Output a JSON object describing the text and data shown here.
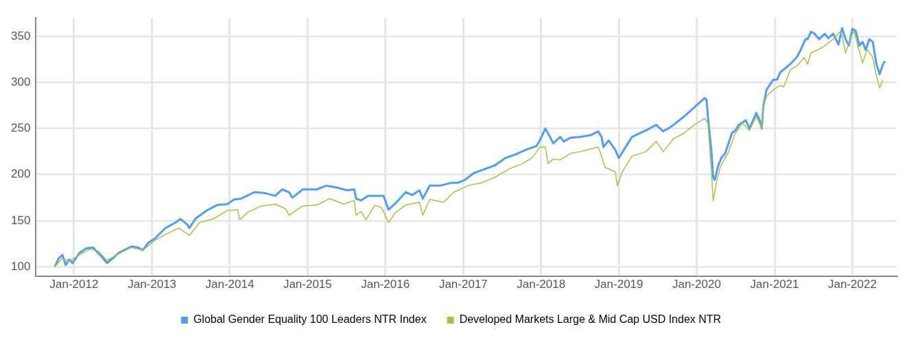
{
  "chart_data": {
    "type": "line",
    "legend": "bottom",
    "grid": true,
    "marker": "none",
    "line_style": "solid",
    "xlim": [
      "2011-07-06",
      "2022-07-28"
    ],
    "xticks": [
      {
        "value": "2012-01",
        "label": "Jan-2012"
      },
      {
        "value": "2013-01",
        "label": "Jan-2013"
      },
      {
        "value": "2014-01",
        "label": "Jan-2014"
      },
      {
        "value": "2015-01",
        "label": "Jan-2015"
      },
      {
        "value": "2016-01",
        "label": "Jan-2016"
      },
      {
        "value": "2017-01",
        "label": "Jan-2017"
      },
      {
        "value": "2018-01",
        "label": "Jan-2018"
      },
      {
        "value": "2019-01",
        "label": "Jan-2019"
      },
      {
        "value": "2020-01",
        "label": "Jan-2020"
      },
      {
        "value": "2021-01",
        "label": "Jan-2021"
      },
      {
        "value": "2022-01",
        "label": "Jan-2022"
      }
    ],
    "ylim": [
      90,
      370
    ],
    "yticks": [
      100,
      150,
      200,
      250,
      300,
      350
    ],
    "series": [
      {
        "name": "Global Gender Equality 100 Leaders NTR Index",
        "color": "#4d9dfa",
        "x": [
          "2011-10-02",
          "2011-10-21",
          "2011-11-07",
          "2011-11-23",
          "2011-12-09",
          "2011-12-25",
          "2012-01-26",
          "2012-02-28",
          "2012-03-30",
          "2012-04-22",
          "2012-05-18",
          "2012-06-03",
          "2012-07-05",
          "2012-07-28",
          "2012-08-23",
          "2012-09-25",
          "2012-10-27",
          "2012-11-19",
          "2012-12-14",
          "2013-01-16",
          "2013-03-04",
          "2013-04-21",
          "2013-05-14",
          "2013-06-15",
          "2013-06-25",
          "2013-07-27",
          "2013-09-14",
          "2013-11-02",
          "2013-12-20",
          "2014-01-21",
          "2014-02-23",
          "2014-04-27",
          "2014-06-14",
          "2014-08-02",
          "2014-09-04",
          "2014-10-06",
          "2014-10-22",
          "2014-12-09",
          "2015-02-13",
          "2015-03-30",
          "2015-05-18",
          "2015-07-06",
          "2015-08-08",
          "2015-08-17",
          "2015-09-09",
          "2015-10-11",
          "2015-11-13",
          "2015-12-24",
          "2016-01-16",
          "2016-02-18",
          "2016-04-06",
          "2016-05-08",
          "2016-06-09",
          "2016-06-25",
          "2016-07-27",
          "2016-09-14",
          "2016-11-02",
          "2016-12-04",
          "2017-01-06",
          "2017-02-22",
          "2017-04-11",
          "2017-05-29",
          "2017-07-17",
          "2017-09-04",
          "2017-10-22",
          "2017-12-10",
          "2017-12-26",
          "2018-01-21",
          "2018-02-12",
          "2018-02-27",
          "2018-04-01",
          "2018-04-17",
          "2018-05-19",
          "2018-07-06",
          "2018-08-24",
          "2018-09-26",
          "2018-10-12",
          "2018-10-21",
          "2018-11-14",
          "2018-12-15",
          "2019-01-01",
          "2019-02-02",
          "2019-03-04",
          "2019-05-08",
          "2019-06-26",
          "2019-07-28",
          "2019-08-29",
          "2019-10-01",
          "2019-11-03",
          "2019-12-21",
          "2020-02-08",
          "2020-02-17",
          "2020-02-23",
          "2020-03-10",
          "2020-03-19",
          "2020-03-26",
          "2020-04-12",
          "2020-04-28",
          "2020-05-14",
          "2020-05-30",
          "2020-06-15",
          "2020-07-01",
          "2020-07-17",
          "2020-08-19",
          "2020-09-05",
          "2020-10-07",
          "2020-10-23",
          "2020-11-02",
          "2020-11-09",
          "2020-11-24",
          "2020-12-26",
          "2021-01-12",
          "2021-01-28",
          "2021-02-13",
          "2021-03-16",
          "2021-04-17",
          "2021-05-03",
          "2021-05-26",
          "2021-06-05",
          "2021-06-21",
          "2021-07-07",
          "2021-07-29",
          "2021-08-25",
          "2021-09-10",
          "2021-10-03",
          "2021-10-28",
          "2021-11-14",
          "2021-11-30",
          "2021-12-16",
          "2022-01-01",
          "2022-01-17",
          "2022-02-03",
          "2022-02-18",
          "2022-03-05",
          "2022-03-21",
          "2022-04-07",
          "2022-04-23",
          "2022-05-09",
          "2022-05-25",
          "2022-06-04"
        ],
        "values": [
          100,
          109,
          113,
          102,
          108,
          104,
          115,
          120,
          121,
          115,
          109,
          104,
          110,
          115,
          118,
          122,
          121,
          118,
          126,
          131,
          142,
          148,
          152,
          146,
          142,
          153,
          161,
          167,
          168,
          173,
          174,
          181,
          180,
          177,
          184,
          181,
          175,
          184,
          184,
          188,
          186,
          183,
          184,
          174,
          172,
          177,
          177,
          177,
          162,
          169,
          181,
          178,
          183,
          174,
          188,
          188,
          191,
          191,
          194,
          202,
          206,
          210,
          218,
          222,
          227,
          231,
          237,
          250,
          241,
          234,
          241,
          236,
          240,
          241,
          243,
          247,
          241,
          230,
          237,
          227,
          218,
          230,
          241,
          248,
          254,
          247,
          251,
          257,
          263,
          273,
          283,
          281,
          263,
          227,
          197,
          194,
          210,
          219,
          223,
          234,
          245,
          248,
          254,
          259,
          250,
          267,
          259,
          250,
          274,
          292,
          303,
          303,
          311,
          314,
          320,
          328,
          335,
          347,
          347,
          355,
          353,
          347,
          353,
          348,
          353,
          341,
          359,
          347,
          340,
          358,
          356,
          340,
          344,
          335,
          347,
          344,
          321,
          309,
          320,
          323
        ]
      },
      {
        "name": "Developed Markets Large & Mid Cap USD Index NTR",
        "color": "#a9c23f",
        "x": [
          "2011-10-02",
          "2011-11-07",
          "2011-12-09",
          "2012-01-26",
          "2012-03-14",
          "2012-04-25",
          "2012-06-03",
          "2012-07-21",
          "2012-09-25",
          "2012-11-19",
          "2013-01-16",
          "2013-03-04",
          "2013-05-07",
          "2013-06-25",
          "2013-08-12",
          "2013-10-16",
          "2013-12-20",
          "2014-02-07",
          "2014-02-16",
          "2014-03-25",
          "2014-05-29",
          "2014-08-02",
          "2014-09-20",
          "2014-10-06",
          "2014-12-09",
          "2015-02-13",
          "2015-04-16",
          "2015-06-20",
          "2015-08-08",
          "2015-08-17",
          "2015-09-09",
          "2015-10-02",
          "2015-11-13",
          "2015-12-15",
          "2016-01-16",
          "2016-02-18",
          "2016-04-06",
          "2016-06-09",
          "2016-06-25",
          "2016-07-27",
          "2016-09-30",
          "2016-11-18",
          "2017-01-22",
          "2017-03-25",
          "2017-05-29",
          "2017-08-03",
          "2017-10-06",
          "2017-11-24",
          "2017-12-26",
          "2018-01-21",
          "2018-02-03",
          "2018-02-27",
          "2018-04-01",
          "2018-05-19",
          "2018-07-06",
          "2018-08-24",
          "2018-09-26",
          "2018-10-12",
          "2018-10-28",
          "2018-12-15",
          "2018-12-25",
          "2019-01-17",
          "2019-03-04",
          "2019-05-08",
          "2019-06-26",
          "2019-07-28",
          "2019-09-15",
          "2019-11-03",
          "2019-12-21",
          "2020-02-08",
          "2020-02-23",
          "2020-03-10",
          "2020-03-19",
          "2020-04-02",
          "2020-04-21",
          "2020-05-30",
          "2020-07-01",
          "2020-08-03",
          "2020-09-05",
          "2020-10-07",
          "2020-11-02",
          "2020-11-09",
          "2020-11-24",
          "2020-12-26",
          "2021-01-28",
          "2021-02-13",
          "2021-03-16",
          "2021-04-17",
          "2021-05-19",
          "2021-06-05",
          "2021-06-21",
          "2021-07-29",
          "2021-08-25",
          "2021-10-03",
          "2021-11-04",
          "2021-11-14",
          "2021-11-30",
          "2021-12-22",
          "2022-01-08",
          "2022-01-27",
          "2022-02-18",
          "2022-03-11",
          "2022-04-07",
          "2022-04-23",
          "2022-05-09",
          "2022-05-25"
        ],
        "values": [
          100,
          109,
          106,
          113,
          119,
          117,
          107,
          113,
          121,
          118,
          129,
          135,
          142,
          134,
          148,
          152,
          161,
          162,
          151,
          159,
          166,
          168,
          163,
          156,
          166,
          167,
          174,
          168,
          172,
          156,
          160,
          151,
          167,
          164,
          148,
          159,
          167,
          170,
          156,
          173,
          170,
          181,
          188,
          191,
          197,
          206,
          212,
          219,
          230,
          230,
          212,
          217,
          216,
          223,
          225,
          228,
          230,
          220,
          208,
          203,
          188,
          203,
          220,
          225,
          236,
          225,
          239,
          245,
          254,
          261,
          256,
          205,
          172,
          190,
          208,
          225,
          245,
          256,
          248,
          263,
          250,
          274,
          285,
          292,
          297,
          295,
          314,
          318,
          327,
          320,
          332,
          336,
          340,
          347,
          355,
          351,
          332,
          347,
          356,
          340,
          321,
          336,
          327,
          308,
          294,
          303
        ]
      }
    ]
  }
}
